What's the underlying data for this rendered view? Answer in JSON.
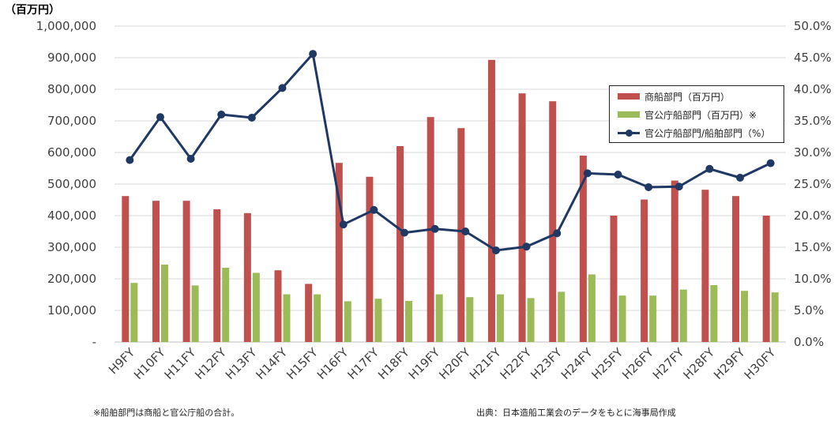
{
  "chart_data": {
    "type": "bar+line",
    "unit_label": "（百万円）",
    "categories": [
      "H9FY",
      "H10FY",
      "H11FY",
      "H12FY",
      "H13FY",
      "H14FY",
      "H15FY",
      "H16FY",
      "H17FY",
      "H18FY",
      "H19FY",
      "H20FY",
      "H21FY",
      "H22FY",
      "H23FY",
      "H24FY",
      "H25FY",
      "H26FY",
      "H27FY",
      "H28FY",
      "H29FY",
      "H30FY"
    ],
    "series": [
      {
        "name": "商船部門（百万円）",
        "type": "bar",
        "axis": "left",
        "color": "#c0504d",
        "values": [
          462000,
          447000,
          447000,
          420000,
          408000,
          227000,
          184000,
          567000,
          523000,
          620000,
          712000,
          677000,
          893000,
          787000,
          762000,
          590000,
          400000,
          451000,
          511000,
          482000,
          462000,
          400000
        ]
      },
      {
        "name": "官公庁船部門（百万円）※",
        "type": "bar",
        "axis": "left",
        "color": "#9bbb59",
        "values": [
          187000,
          245000,
          179000,
          235000,
          219000,
          151000,
          151000,
          129000,
          137000,
          130000,
          151000,
          142000,
          151000,
          139000,
          159000,
          214000,
          147000,
          147000,
          166000,
          180000,
          162000,
          157000
        ]
      },
      {
        "name": "官公庁船部門/船舶部門（%）",
        "type": "line",
        "axis": "right",
        "color": "#1f3864",
        "values": [
          28.8,
          35.6,
          29.0,
          36.0,
          35.5,
          40.2,
          45.6,
          18.6,
          20.9,
          17.3,
          17.9,
          17.5,
          14.5,
          15.1,
          17.2,
          26.7,
          26.5,
          24.5,
          24.6,
          27.4,
          26.0,
          28.3
        ]
      }
    ],
    "y_left": {
      "min": 0,
      "max": 1000000,
      "ticks": [
        "-",
        "100,000",
        "200,000",
        "300,000",
        "400,000",
        "500,000",
        "600,000",
        "700,000",
        "800,000",
        "900,000",
        "1,000,000"
      ]
    },
    "y_right": {
      "min": 0,
      "max": 50,
      "ticks": [
        "0.0%",
        "5.0%",
        "10.0%",
        "15.0%",
        "20.0%",
        "25.0%",
        "30.0%",
        "35.0%",
        "40.0%",
        "45.0%",
        "50.0%"
      ]
    },
    "grid": true,
    "legend_position": "top-right"
  },
  "notes": {
    "footnote": "※船舶部門は商船と官公庁船の合計。",
    "source": "出典：日本造船工業会のデータをもとに海事局作成"
  }
}
